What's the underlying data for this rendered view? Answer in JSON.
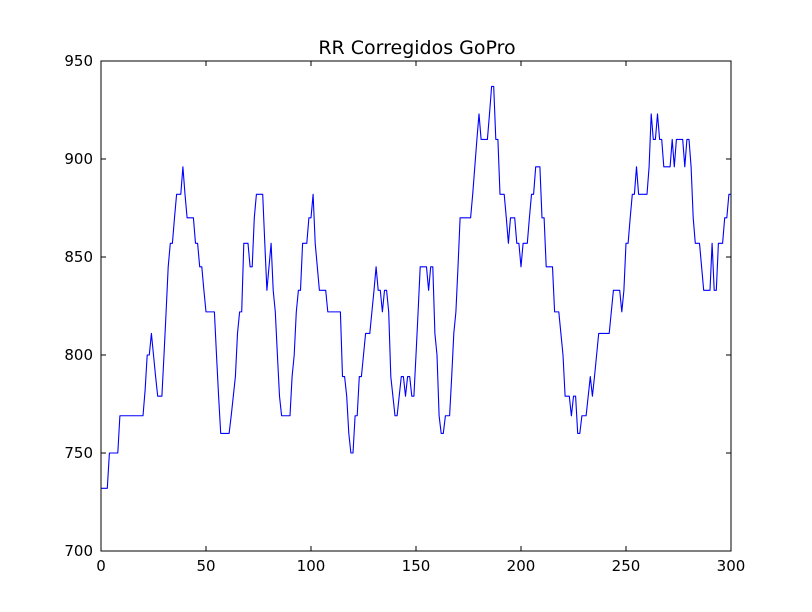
{
  "chart_data": {
    "type": "line",
    "title": "RR Corregidos GoPro",
    "xlabel": "",
    "ylabel": "",
    "xlim": [
      0,
      300
    ],
    "ylim": [
      700,
      950
    ],
    "xticks": [
      0,
      50,
      100,
      150,
      200,
      250,
      300
    ],
    "yticks": [
      700,
      750,
      800,
      850,
      900,
      950
    ],
    "grid": false,
    "legend": "none",
    "series": [
      {
        "color": "#0000ff",
        "x": [
          0,
          3,
          4,
          5,
          6,
          8,
          9,
          10,
          20,
          21,
          22,
          23,
          24,
          25,
          26,
          27,
          28,
          29,
          30,
          31,
          32,
          33,
          34,
          35,
          36,
          37,
          38,
          39,
          40,
          41,
          42,
          43,
          44,
          45,
          46,
          47,
          48,
          49,
          50,
          51,
          52,
          53,
          54,
          55,
          56,
          57,
          58,
          59,
          60,
          61,
          62,
          63,
          64,
          65,
          66,
          67,
          68,
          69,
          70,
          71,
          72,
          73,
          74,
          75,
          76,
          77,
          78,
          79,
          80,
          81,
          82,
          83,
          84,
          85,
          86,
          87,
          88,
          89,
          90,
          91,
          92,
          93,
          94,
          95,
          96,
          97,
          98,
          99,
          100,
          101,
          102,
          103,
          104,
          105,
          106,
          107,
          108,
          109,
          110,
          111,
          112,
          113,
          114,
          115,
          116,
          117,
          118,
          119,
          120,
          121,
          122,
          123,
          124,
          125,
          126,
          127,
          128,
          129,
          130,
          131,
          132,
          133,
          134,
          135,
          136,
          137,
          138,
          139,
          140,
          141,
          142,
          143,
          144,
          145,
          146,
          147,
          148,
          149,
          150,
          151,
          152,
          153,
          154,
          155,
          156,
          157,
          158,
          159,
          160,
          161,
          162,
          163,
          164,
          165,
          166,
          167,
          168,
          169,
          170,
          171,
          172,
          173,
          174,
          175,
          176,
          177,
          178,
          179,
          180,
          181,
          182,
          183,
          184,
          185,
          186,
          187,
          188,
          189,
          190,
          191,
          192,
          193,
          194,
          195,
          196,
          197,
          198,
          199,
          200,
          201,
          202,
          203,
          204,
          205,
          206,
          207,
          208,
          209,
          210,
          211,
          212,
          213,
          214,
          215,
          216,
          217,
          218,
          219,
          220,
          221,
          222,
          223,
          224,
          225,
          226,
          227,
          228,
          229,
          230,
          231,
          232,
          233,
          234,
          235,
          236,
          237,
          238,
          239,
          240,
          241,
          242,
          243,
          244,
          245,
          246,
          247,
          248,
          249,
          250,
          251,
          252,
          253,
          254,
          255,
          256,
          257,
          258,
          259,
          260,
          261,
          262,
          263,
          264,
          265,
          266,
          267,
          268,
          269,
          270,
          271,
          272,
          273,
          274,
          275,
          276,
          277,
          278,
          279,
          280,
          281,
          282,
          283,
          284,
          285,
          286,
          287,
          288,
          289,
          290,
          291,
          292,
          293,
          294,
          295,
          296,
          297,
          298,
          299,
          300
        ],
        "y": [
          732,
          732,
          750,
          750,
          750,
          750,
          769,
          769,
          769,
          782,
          800,
          800,
          811,
          800,
          789,
          779,
          779,
          779,
          800,
          822,
          845,
          857,
          857,
          870,
          882,
          882,
          882,
          896,
          882,
          870,
          870,
          870,
          870,
          857,
          857,
          845,
          845,
          833,
          822,
          822,
          822,
          822,
          822,
          800,
          779,
          760,
          760,
          760,
          760,
          760,
          769,
          779,
          789,
          811,
          822,
          822,
          857,
          857,
          857,
          845,
          845,
          870,
          882,
          882,
          882,
          882,
          857,
          833,
          845,
          857,
          833,
          822,
          800,
          779,
          769,
          769,
          769,
          769,
          769,
          789,
          800,
          822,
          833,
          833,
          857,
          857,
          857,
          870,
          870,
          882,
          857,
          845,
          833,
          833,
          833,
          833,
          822,
          822,
          822,
          822,
          822,
          822,
          822,
          789,
          789,
          779,
          760,
          750,
          750,
          769,
          769,
          789,
          789,
          800,
          811,
          811,
          811,
          822,
          833,
          845,
          833,
          833,
          822,
          833,
          833,
          822,
          789,
          779,
          769,
          769,
          779,
          789,
          789,
          779,
          789,
          789,
          779,
          779,
          800,
          822,
          845,
          845,
          845,
          845,
          833,
          845,
          845,
          811,
          800,
          769,
          760,
          760,
          769,
          769,
          769,
          789,
          811,
          822,
          845,
          870,
          870,
          870,
          870,
          870,
          870,
          882,
          896,
          910,
          923,
          910,
          910,
          910,
          910,
          923,
          937,
          937,
          910,
          910,
          882,
          882,
          882,
          870,
          857,
          870,
          870,
          870,
          857,
          857,
          845,
          857,
          857,
          857,
          870,
          882,
          882,
          896,
          896,
          896,
          870,
          870,
          845,
          845,
          845,
          845,
          822,
          822,
          822,
          811,
          800,
          779,
          779,
          779,
          769,
          779,
          779,
          760,
          760,
          769,
          769,
          769,
          779,
          789,
          779,
          789,
          800,
          811,
          811,
          811,
          811,
          811,
          811,
          822,
          833,
          833,
          833,
          833,
          822,
          833,
          857,
          857,
          870,
          882,
          882,
          896,
          882,
          882,
          882,
          882,
          882,
          896,
          923,
          910,
          910,
          923,
          910,
          910,
          896,
          896,
          896,
          896,
          910,
          896,
          910,
          910,
          910,
          910,
          896,
          910,
          910,
          896,
          870,
          857,
          857,
          857,
          845,
          833,
          833,
          833,
          833,
          857,
          833,
          833,
          857,
          857,
          857,
          870,
          870,
          882,
          882
        ]
      }
    ]
  }
}
